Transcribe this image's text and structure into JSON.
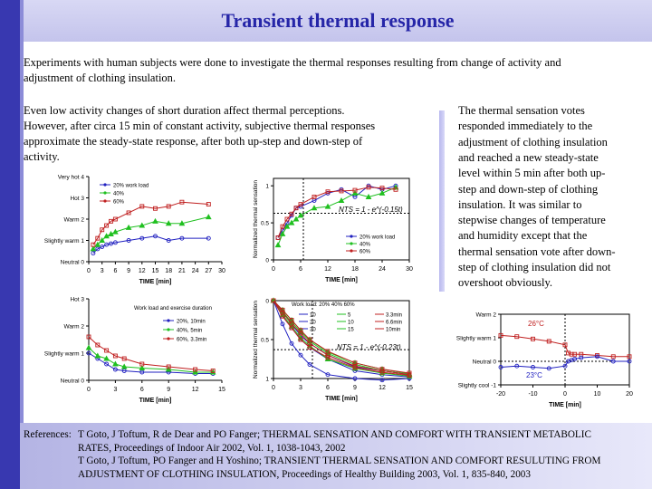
{
  "header": {
    "title": "Transient thermal response"
  },
  "intro": {
    "line1": "Experiments with human subjects were done to investigate the thermal responses resulting from change of activity and",
    "line2": "adjustment of clothing insulation."
  },
  "activity": {
    "line1": "Even low activity changes of short duration affect thermal perceptions.",
    "line2": "However, after circa 15 min of constant activity, subjective thermal responses",
    "line3": "approximate the steady-state response, after both up-step and down-step of",
    "line4": "activity."
  },
  "clothing": {
    "lines": [
      "The thermal sensation votes",
      "responded immediately to the",
      "adjustment of clothing insulation",
      "and reached a new steady-state",
      "level within 5 min after both up-",
      "step and down-step of clothing",
      "insulation. It was similar to",
      "stepwise changes of temperature",
      "and humidity except that the",
      "thermal sensation vote after down-",
      "step of clothing insulation did not",
      "overshoot obviously."
    ]
  },
  "references": {
    "label": "References:",
    "r1a": "T Goto, J Toftum, R de Dear and PO Fanger; THERMAL SENSATION AND COMFORT WITH TRANSIENT METABOLIC",
    "r1b": "RATES, Proceedings of Indoor Air 2002, Vol. 1, 1038-1043, 2002",
    "r2a": "T Goto, J Toftum, PO Fanger and H Yoshino; TRANSIENT THERMAL SENSATION AND COMFORT RESULUTING FROM",
    "r2b": "ADJUSTMENT OF CLOTHING INSULATION, Proceedings of Healthy Building 2003, Vol. 1, 835-840, 2003"
  },
  "colors": {
    "blue": "#2020c0",
    "green": "#20c020",
    "red": "#c02020",
    "title": "#2626a8"
  },
  "chart_data": [
    {
      "type": "line",
      "ytick_labels": [
        "Neutral 0",
        "Slightly warm 1",
        "Warm 2",
        "Hot 3",
        "Very hot 4"
      ],
      "yticks": [
        0,
        1,
        2,
        3,
        4
      ],
      "ylim": [
        0,
        4
      ],
      "x": [
        0,
        3,
        6,
        9,
        12,
        15,
        18,
        21,
        24,
        27,
        30
      ],
      "xticks": [
        0,
        3,
        6,
        9,
        12,
        15,
        18,
        21,
        24,
        27,
        30
      ],
      "xlim": [
        0,
        30
      ],
      "xlabel": "TIME [min]",
      "series": [
        {
          "name": "20% work load",
          "color": "blue",
          "x": [
            1,
            2,
            3,
            4,
            5,
            6,
            9,
            12,
            15,
            18,
            21,
            27
          ],
          "y": [
            0.4,
            0.6,
            0.7,
            0.8,
            0.85,
            0.9,
            1.0,
            1.1,
            1.2,
            1.0,
            1.1,
            1.1
          ]
        },
        {
          "name": "40%",
          "color": "green",
          "x": [
            1,
            2,
            3,
            4,
            5,
            6,
            9,
            12,
            15,
            18,
            21,
            27
          ],
          "y": [
            0.6,
            0.8,
            1.0,
            1.2,
            1.3,
            1.4,
            1.6,
            1.7,
            1.9,
            1.8,
            1.8,
            2.1
          ]
        },
        {
          "name": "60%",
          "color": "red",
          "x": [
            1,
            2,
            3,
            4,
            5,
            6,
            9,
            12,
            15,
            18,
            21,
            27
          ],
          "y": [
            0.8,
            1.1,
            1.5,
            1.7,
            1.9,
            2.0,
            2.3,
            2.6,
            2.5,
            2.6,
            2.8,
            2.7
          ]
        }
      ]
    },
    {
      "type": "line",
      "ylabel": "Normalized thermal sensation",
      "annotation": "NTS = 1 - e^(-0.15t)",
      "yticks": [
        0,
        0.5,
        1
      ],
      "ytick_labels": [
        "0",
        "0.5",
        "1"
      ],
      "ylim": [
        0,
        1.1
      ],
      "xticks": [
        0,
        6,
        12,
        18,
        24,
        30
      ],
      "xlim": [
        0,
        30
      ],
      "xlabel": "TIME [min]",
      "series": [
        {
          "name": "20% work load",
          "color": "blue",
          "x": [
            1,
            2,
            3,
            4,
            5,
            6,
            9,
            12,
            15,
            18,
            21,
            24,
            27
          ],
          "y": [
            0.3,
            0.4,
            0.5,
            0.6,
            0.7,
            0.72,
            0.8,
            0.9,
            0.95,
            0.85,
            1.0,
            0.95,
            1.0
          ]
        },
        {
          "name": "40%",
          "color": "green",
          "x": [
            1,
            2,
            3,
            4,
            5,
            6,
            9,
            12,
            15,
            18,
            21,
            24,
            27
          ],
          "y": [
            0.2,
            0.35,
            0.45,
            0.5,
            0.55,
            0.6,
            0.7,
            0.72,
            0.8,
            0.9,
            0.85,
            0.9,
            0.98
          ]
        },
        {
          "name": "60%",
          "color": "red",
          "x": [
            1,
            2,
            3,
            4,
            5,
            6,
            9,
            12,
            15,
            18,
            21,
            24,
            27
          ],
          "y": [
            0.3,
            0.45,
            0.55,
            0.62,
            0.7,
            0.75,
            0.85,
            0.92,
            0.93,
            0.94,
            0.98,
            0.97,
            0.95
          ]
        }
      ]
    },
    {
      "type": "line",
      "legend_title": "Work load and exercise duration",
      "ytick_labels": [
        "Neutral 0",
        "Slightly warm 1",
        "Warm 2",
        "Hot 3"
      ],
      "yticks": [
        0,
        1,
        2,
        3
      ],
      "ylim": [
        0,
        3
      ],
      "xticks": [
        0,
        3,
        6,
        9,
        12,
        15
      ],
      "xlim": [
        0,
        15
      ],
      "xlabel": "TIME [min]",
      "series": [
        {
          "name": "20%, 10min",
          "color": "blue",
          "x": [
            0,
            1,
            2,
            3,
            4,
            6,
            9,
            12,
            14
          ],
          "y": [
            1.0,
            0.8,
            0.6,
            0.4,
            0.35,
            0.3,
            0.3,
            0.25,
            0.25
          ]
        },
        {
          "name": "40%, 5min",
          "color": "green",
          "x": [
            0,
            1,
            2,
            3,
            4,
            6,
            9,
            12,
            14
          ],
          "y": [
            1.2,
            0.9,
            0.8,
            0.6,
            0.5,
            0.45,
            0.4,
            0.3,
            0.3
          ]
        },
        {
          "name": "60%, 3.3min",
          "color": "red",
          "x": [
            0,
            1,
            2,
            3,
            4,
            6,
            9,
            12,
            14
          ],
          "y": [
            1.6,
            1.3,
            1.1,
            0.9,
            0.8,
            0.6,
            0.5,
            0.4,
            0.35
          ]
        }
      ]
    },
    {
      "type": "line",
      "ylabel": "Normalized thermal sensation",
      "annotation": "NTS = 1 - e^(-0.23t)",
      "legend_header": "Work load: 20% 40% 60%",
      "yticks": [
        0,
        0.5,
        1
      ],
      "ytick_labels": [
        "0",
        "0.5",
        "1"
      ],
      "xticks": [
        0,
        3,
        6,
        9,
        12,
        15
      ],
      "xlim": [
        0,
        15
      ],
      "xlabel": "TIME [min]",
      "series": [
        {
          "name": "10",
          "color": "blue",
          "x": [
            0,
            1,
            2,
            3,
            4,
            6,
            9,
            12,
            15
          ],
          "y": [
            0,
            0.3,
            0.55,
            0.7,
            0.82,
            0.95,
            1.0,
            1.02,
            1.0
          ]
        },
        {
          "name": "20",
          "color": "blue",
          "x": [
            0,
            1,
            2,
            3,
            4,
            6,
            9,
            12,
            15
          ],
          "y": [
            0,
            0.2,
            0.35,
            0.5,
            0.6,
            0.75,
            0.9,
            0.95,
            0.98
          ]
        },
        {
          "name": "30",
          "color": "blue",
          "x": [
            0,
            1,
            2,
            3,
            4,
            6,
            9,
            12,
            15
          ],
          "y": [
            0,
            0.15,
            0.3,
            0.45,
            0.55,
            0.7,
            0.85,
            0.9,
            0.95
          ]
        },
        {
          "name": "5",
          "color": "green",
          "x": [
            0,
            1,
            2,
            3,
            4,
            6,
            9,
            12,
            15
          ],
          "y": [
            0,
            0.18,
            0.33,
            0.48,
            0.58,
            0.75,
            0.87,
            0.93,
            0.97
          ]
        },
        {
          "name": "10",
          "color": "green",
          "x": [
            0,
            1,
            2,
            3,
            4,
            6,
            9,
            12,
            15
          ],
          "y": [
            0,
            0.14,
            0.28,
            0.4,
            0.52,
            0.68,
            0.82,
            0.9,
            0.95
          ]
        },
        {
          "name": "15",
          "color": "green",
          "x": [
            0,
            1,
            2,
            3,
            4,
            6,
            9,
            12,
            15
          ],
          "y": [
            0,
            0.12,
            0.25,
            0.38,
            0.5,
            0.66,
            0.8,
            0.88,
            0.94
          ]
        },
        {
          "name": "3.3min",
          "color": "red",
          "x": [
            0,
            1,
            2,
            3,
            4,
            6,
            9,
            12,
            15
          ],
          "y": [
            0,
            0.2,
            0.35,
            0.5,
            0.6,
            0.73,
            0.86,
            0.92,
            0.96
          ]
        },
        {
          "name": "6.6min",
          "color": "red",
          "x": [
            0,
            1,
            2,
            3,
            4,
            6,
            9,
            12,
            15
          ],
          "y": [
            0,
            0.15,
            0.3,
            0.42,
            0.55,
            0.7,
            0.84,
            0.9,
            0.95
          ]
        },
        {
          "name": "10min",
          "color": "red",
          "x": [
            0,
            1,
            2,
            3,
            4,
            6,
            9,
            12,
            15
          ],
          "y": [
            0,
            0.12,
            0.25,
            0.38,
            0.5,
            0.65,
            0.8,
            0.88,
            0.93
          ]
        }
      ]
    },
    {
      "type": "line",
      "ytick_labels": [
        "Slightly cool -1",
        "Neutral 0",
        "Slightly warm 1",
        "Warm 2"
      ],
      "yticks": [
        -1,
        0,
        1,
        2
      ],
      "ylim": [
        -1,
        2
      ],
      "xticks": [
        -20,
        -10,
        0,
        10,
        20
      ],
      "xtick_labels": [
        "-20",
        "-10",
        "0",
        "10",
        "20"
      ],
      "xlim": [
        -20,
        20
      ],
      "xlabel": "TIME [min]",
      "series": [
        {
          "name": "26°C",
          "color": "red",
          "x": [
            -20,
            -15,
            -10,
            -5,
            0,
            1,
            2,
            3,
            5,
            10,
            15,
            20
          ],
          "y": [
            1.1,
            1.05,
            0.95,
            0.85,
            0.7,
            0.35,
            0.3,
            0.3,
            0.3,
            0.25,
            0.2,
            0.2
          ]
        },
        {
          "name": "23°C",
          "color": "blue",
          "x": [
            -20,
            -15,
            -10,
            -5,
            0,
            1,
            2,
            3,
            5,
            10,
            15,
            20
          ],
          "y": [
            -0.25,
            -0.2,
            -0.25,
            -0.3,
            -0.2,
            0.0,
            0.05,
            0.1,
            0.15,
            0.2,
            0.0,
            0.0
          ]
        }
      ]
    }
  ]
}
